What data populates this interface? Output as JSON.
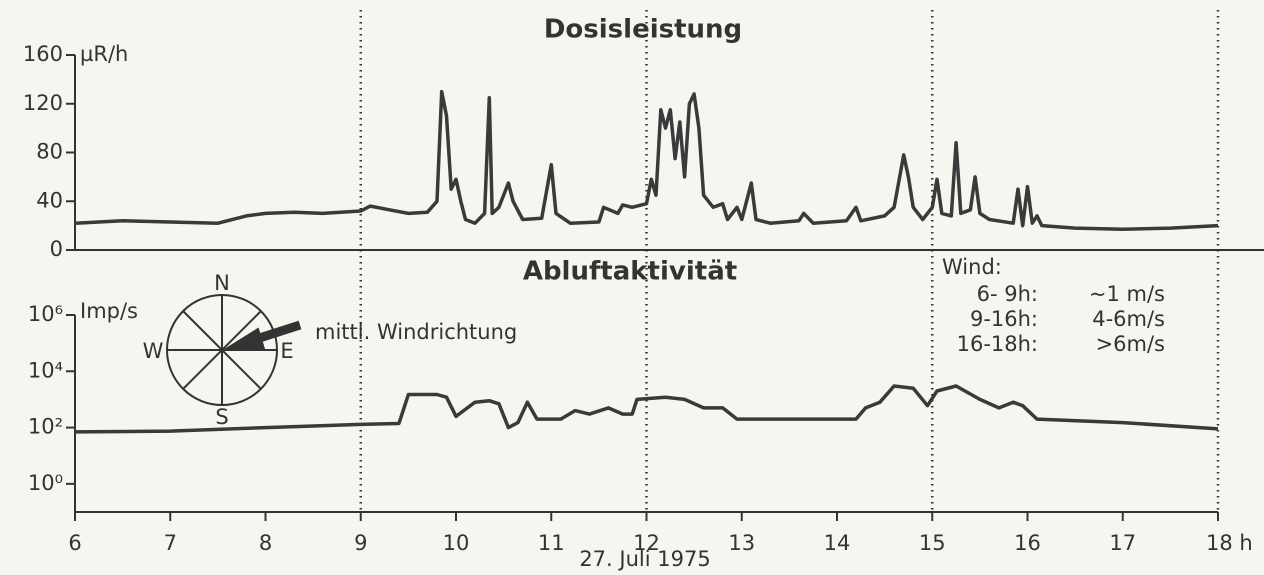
{
  "chart_data": [
    {
      "type": "line",
      "title": "Dosisleistung",
      "y_unit": "µR/h",
      "color": "#3a3a3a",
      "xlim": [
        6,
        18
      ],
      "ylim": [
        0,
        160
      ],
      "yticks": [
        0,
        40,
        80,
        120,
        160
      ],
      "x": [
        6.0,
        6.5,
        7.0,
        7.5,
        7.8,
        8.0,
        8.3,
        8.6,
        9.0,
        9.1,
        9.3,
        9.5,
        9.7,
        9.8,
        9.85,
        9.9,
        9.95,
        10.0,
        10.05,
        10.1,
        10.2,
        10.3,
        10.35,
        10.38,
        10.45,
        10.55,
        10.6,
        10.7,
        10.9,
        11.0,
        11.05,
        11.2,
        11.5,
        11.55,
        11.7,
        11.75,
        11.85,
        12.0,
        12.05,
        12.1,
        12.15,
        12.2,
        12.25,
        12.3,
        12.35,
        12.4,
        12.45,
        12.5,
        12.55,
        12.6,
        12.7,
        12.8,
        12.85,
        12.95,
        13.0,
        13.1,
        13.15,
        13.3,
        13.6,
        13.65,
        13.75,
        14.1,
        14.2,
        14.25,
        14.5,
        14.6,
        14.7,
        14.75,
        14.8,
        14.9,
        15.0,
        15.05,
        15.1,
        15.2,
        15.25,
        15.3,
        15.4,
        15.45,
        15.5,
        15.6,
        15.85,
        15.9,
        15.95,
        16.0,
        16.05,
        16.1,
        16.15,
        16.5,
        17.0,
        17.5,
        18.0
      ],
      "values": [
        22,
        24,
        23,
        22,
        28,
        30,
        31,
        30,
        32,
        36,
        33,
        30,
        31,
        40,
        130,
        110,
        50,
        58,
        40,
        25,
        22,
        30,
        125,
        30,
        35,
        55,
        40,
        25,
        26,
        70,
        30,
        22,
        23,
        35,
        30,
        37,
        35,
        38,
        58,
        45,
        115,
        100,
        115,
        75,
        105,
        60,
        120,
        128,
        100,
        45,
        35,
        38,
        25,
        35,
        25,
        55,
        25,
        22,
        24,
        30,
        22,
        24,
        35,
        24,
        28,
        35,
        78,
        60,
        35,
        25,
        35,
        58,
        30,
        28,
        88,
        30,
        33,
        60,
        30,
        25,
        22,
        50,
        20,
        52,
        22,
        28,
        20,
        18,
        17,
        18,
        20
      ]
    },
    {
      "type": "line",
      "title": "Abluftaktivität",
      "y_unit": "Imp/s",
      "color": "#3a3a3a",
      "yscale": "log",
      "xlim": [
        6,
        18
      ],
      "ylim": [
        0.1,
        1000000
      ],
      "yticks": [
        {
          "value": 1,
          "label": "10⁰"
        },
        {
          "value": 100,
          "label": "10²"
        },
        {
          "value": 10000,
          "label": "10⁴"
        },
        {
          "value": 1000000,
          "label": "10⁶"
        }
      ],
      "xticks": [
        6,
        7,
        8,
        9,
        10,
        11,
        12,
        13,
        14,
        15,
        16,
        17,
        {
          "value": 18,
          "label": "18 h"
        }
      ],
      "vlines": [
        9,
        12,
        15,
        18
      ],
      "xlabel": "27. Juli 1975",
      "x": [
        6.0,
        7.0,
        8.0,
        9.0,
        9.4,
        9.5,
        9.8,
        9.9,
        10.0,
        10.2,
        10.35,
        10.45,
        10.55,
        10.65,
        10.75,
        10.85,
        11.1,
        11.25,
        11.4,
        11.6,
        11.75,
        11.85,
        11.9,
        12.2,
        12.4,
        12.6,
        12.8,
        12.95,
        14.2,
        14.3,
        14.45,
        14.6,
        14.8,
        14.95,
        15.05,
        15.25,
        15.5,
        15.7,
        15.85,
        15.95,
        16.1,
        17.0,
        18.0
      ],
      "values": [
        70,
        75,
        100,
        130,
        140,
        1500,
        1500,
        1200,
        250,
        800,
        900,
        700,
        100,
        150,
        800,
        200,
        200,
        400,
        300,
        500,
        300,
        300,
        1000,
        1200,
        1000,
        500,
        500,
        200,
        200,
        500,
        800,
        3000,
        2500,
        600,
        2000,
        3000,
        1000,
        500,
        800,
        600,
        200,
        150,
        90
      ]
    }
  ],
  "annotations": {
    "compass": {
      "north": "N",
      "east": "E",
      "south": "S",
      "west": "W"
    },
    "wind_direction": "mittl. Windrichtung",
    "wind": {
      "title": "Wind:",
      "rows": [
        [
          "6- 9h:",
          "~1 m/s"
        ],
        [
          "9-16h:",
          "4-6m/s"
        ],
        [
          "16-18h:",
          ">6m/s"
        ]
      ]
    }
  }
}
